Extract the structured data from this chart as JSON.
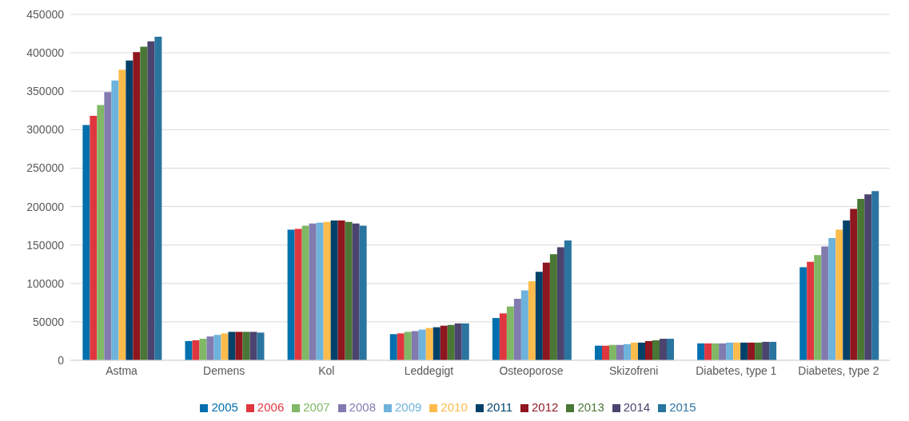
{
  "chart_data": {
    "type": "bar",
    "categories": [
      "Astma",
      "Demens",
      "Kol",
      "Leddegigt",
      "Osteoporose",
      "Skizofreni",
      "Diabetes, type 1",
      "Diabetes, type 2"
    ],
    "series": [
      {
        "name": "2005",
        "color": "#0070ae",
        "values": [
          306000,
          25000,
          170000,
          34000,
          55000,
          19000,
          22000,
          121000
        ]
      },
      {
        "name": "2006",
        "color": "#e0363f",
        "values": [
          318000,
          26000,
          171000,
          35000,
          61000,
          19000,
          22000,
          128000
        ]
      },
      {
        "name": "2007",
        "color": "#80b865",
        "values": [
          332000,
          28000,
          175000,
          37000,
          70000,
          20000,
          22000,
          137000
        ]
      },
      {
        "name": "2008",
        "color": "#827bb0",
        "values": [
          349000,
          31000,
          178000,
          38000,
          80000,
          20000,
          22000,
          148000
        ]
      },
      {
        "name": "2009",
        "color": "#6db3dc",
        "values": [
          364000,
          33000,
          179000,
          40000,
          91000,
          21000,
          23000,
          159000
        ]
      },
      {
        "name": "2010",
        "color": "#fcbc4c",
        "values": [
          378000,
          35000,
          180000,
          42000,
          103000,
          23000,
          23000,
          170000
        ]
      },
      {
        "name": "2011",
        "color": "#00416a",
        "values": [
          390000,
          37000,
          182000,
          43000,
          115000,
          23000,
          23000,
          182000
        ]
      },
      {
        "name": "2012",
        "color": "#8e161f",
        "values": [
          401000,
          37000,
          182000,
          45000,
          127000,
          25000,
          23000,
          197000
        ]
      },
      {
        "name": "2013",
        "color": "#4a7735",
        "values": [
          408000,
          37000,
          180000,
          46000,
          138000,
          26000,
          23000,
          210000
        ]
      },
      {
        "name": "2014",
        "color": "#4a446e",
        "values": [
          415000,
          37000,
          178000,
          48000,
          147000,
          28000,
          24000,
          216000
        ]
      },
      {
        "name": "2015",
        "color": "#2a74a0",
        "values": [
          421000,
          36000,
          175000,
          48000,
          156000,
          28000,
          24000,
          220000
        ]
      }
    ],
    "ylim": [
      0,
      450000
    ],
    "yticks": [
      0,
      50000,
      100000,
      150000,
      200000,
      250000,
      300000,
      350000,
      400000,
      450000
    ],
    "grid": "y",
    "legend": "bottom"
  }
}
